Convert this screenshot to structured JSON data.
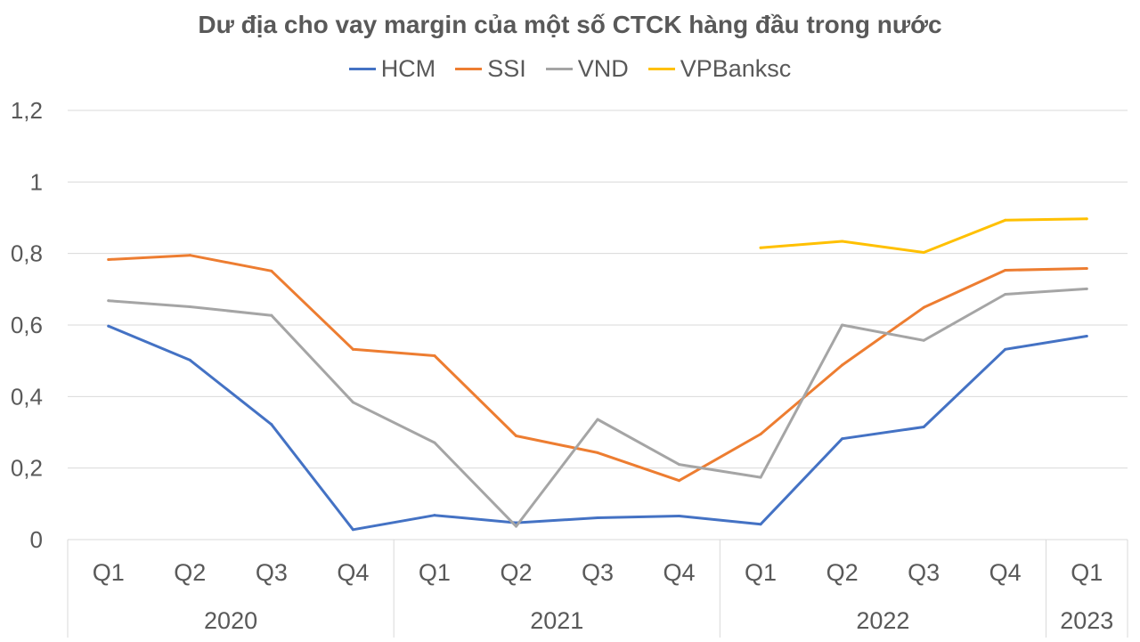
{
  "chart_data": {
    "type": "line",
    "title": "Dư địa cho vay margin của một số CTCK hàng đầu trong nước",
    "categories": [
      "Q1",
      "Q2",
      "Q3",
      "Q4",
      "Q1",
      "Q2",
      "Q3",
      "Q4",
      "Q1",
      "Q2",
      "Q3",
      "Q4",
      "Q1"
    ],
    "year_groups": [
      {
        "label": "2020",
        "count": 4
      },
      {
        "label": "2021",
        "count": 4
      },
      {
        "label": "2022",
        "count": 4
      },
      {
        "label": "2023",
        "count": 1
      }
    ],
    "ylim": [
      0,
      1.2
    ],
    "yticks": [
      "0",
      "0,2",
      "0,4",
      "0,6",
      "0,8",
      "1",
      "1,2"
    ],
    "ytick_values": [
      0,
      0.2,
      0.4,
      0.6,
      0.8,
      1.0,
      1.2
    ],
    "grid": true,
    "legend_position": "top",
    "series": [
      {
        "name": "HCM",
        "color": "#4472C4",
        "values": [
          0.597,
          0.502,
          0.322,
          0.028,
          0.068,
          0.047,
          0.061,
          0.066,
          0.043,
          0.282,
          0.315,
          0.532,
          0.569
        ]
      },
      {
        "name": "SSI",
        "color": "#ED7D31",
        "values": [
          0.783,
          0.795,
          0.751,
          0.532,
          0.514,
          0.29,
          0.243,
          0.165,
          0.295,
          0.488,
          0.649,
          0.753,
          0.758
        ]
      },
      {
        "name": "VND",
        "color": "#A5A5A5",
        "values": [
          0.668,
          0.651,
          0.627,
          0.384,
          0.271,
          0.037,
          0.336,
          0.21,
          0.174,
          0.6,
          0.557,
          0.686,
          0.701
        ]
      },
      {
        "name": "VPBanksc",
        "color": "#FFC000",
        "values": [
          null,
          null,
          null,
          null,
          null,
          null,
          null,
          null,
          0.816,
          0.834,
          0.803,
          0.893,
          0.897
        ]
      }
    ]
  }
}
